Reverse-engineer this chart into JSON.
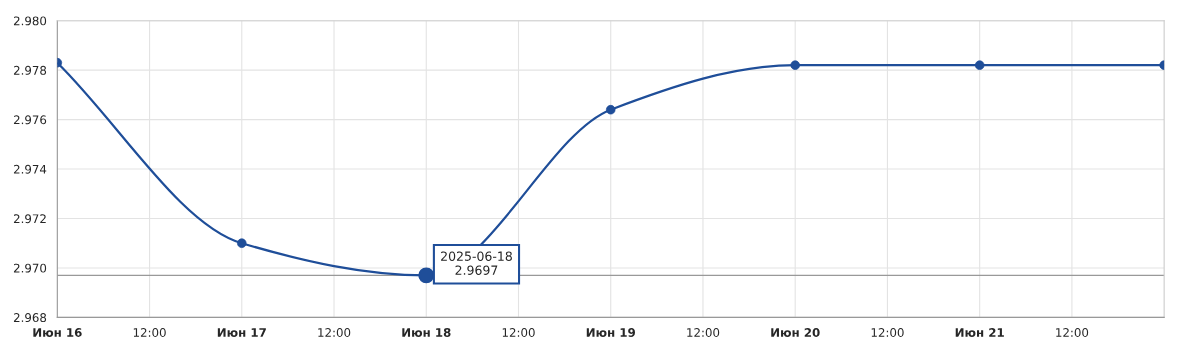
{
  "chart_data": {
    "type": "line",
    "x": [
      "2025-06-16",
      "2025-06-17",
      "2025-06-18",
      "2025-06-19",
      "2025-06-20",
      "2025-06-21",
      "2025-06-22"
    ],
    "series": [
      {
        "color": "#1f4e99",
        "values": [
          2.9783,
          2.971,
          2.9697,
          2.9764,
          2.9782,
          2.9782,
          2.9782
        ]
      }
    ],
    "marker": "circle",
    "grid": true,
    "line_style": "solid",
    "xlim": [
      "2025-06-16",
      "2025-06-22"
    ],
    "xticks": [
      {
        "value": "2025-06-16",
        "label": "Июн 16"
      },
      {
        "value": "2025-06-16T12:00",
        "label": "12:00"
      },
      {
        "value": "2025-06-17",
        "label": "Июн 17"
      },
      {
        "value": "2025-06-17T12:00",
        "label": "12:00"
      },
      {
        "value": "2025-06-18",
        "label": "Июн 18"
      },
      {
        "value": "2025-06-18T12:00",
        "label": "12:00"
      },
      {
        "value": "2025-06-19",
        "label": "Июн 19"
      },
      {
        "value": "2025-06-19T12:00",
        "label": "12:00"
      },
      {
        "value": "2025-06-20",
        "label": "Июн 20"
      },
      {
        "value": "2025-06-20T12:00",
        "label": "12:00"
      },
      {
        "value": "2025-06-21",
        "label": "Июн 21"
      },
      {
        "value": "2025-06-21T12:00",
        "label": "12:00"
      }
    ],
    "ylim": [
      2.968,
      2.98
    ],
    "yticks": [
      {
        "value": 2.968,
        "label": "2.968"
      },
      {
        "value": 2.97,
        "label": "2.970"
      },
      {
        "value": 2.972,
        "label": "2.972"
      },
      {
        "value": 2.974,
        "label": "2.974"
      },
      {
        "value": 2.976,
        "label": "2.976"
      },
      {
        "value": 2.978,
        "label": "2.978"
      },
      {
        "value": 2.98,
        "label": "2.980"
      }
    ],
    "ref_lines": [
      {
        "axis": "y",
        "value": 2.9697,
        "color": "#999999"
      }
    ],
    "annotations": [
      {
        "text": "2025-06-18\n2.9697",
        "x": "2025-06-18",
        "y": 2.9697
      }
    ]
  }
}
